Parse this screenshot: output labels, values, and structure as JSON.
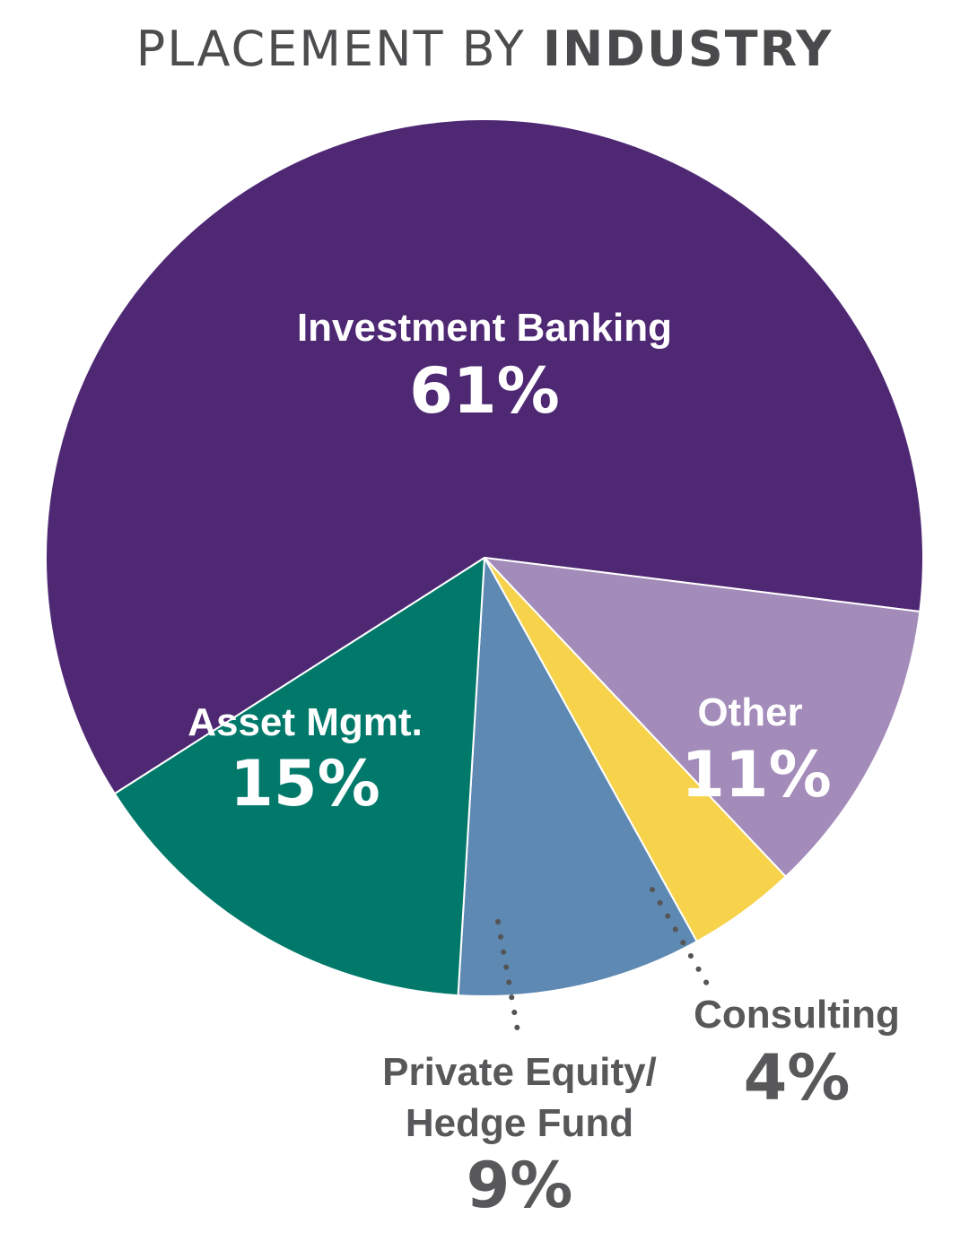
{
  "title": {
    "light": "PLACEMENT BY",
    "bold": "INDUSTRY"
  },
  "chart_data": {
    "type": "pie",
    "title": "PLACEMENT BY INDUSTRY",
    "unit": "%",
    "slices": [
      {
        "id": "investment-banking",
        "label_lines": [
          "Investment Banking"
        ],
        "value": 61,
        "display": "61%",
        "color": "#4f2874",
        "label_color": "#ffffff",
        "label_position": "inside"
      },
      {
        "id": "other",
        "label_lines": [
          "Other"
        ],
        "value": 11,
        "display": "11%",
        "color": "#a38bba",
        "label_color": "#ffffff",
        "label_position": "inside"
      },
      {
        "id": "consulting",
        "label_lines": [
          "Consulting"
        ],
        "value": 4,
        "display": "4%",
        "color": "#f7d34b",
        "label_color": "#58585a",
        "label_position": "outside"
      },
      {
        "id": "private-equity-hedge-fund",
        "label_lines": [
          "Private Equity/",
          "Hedge Fund"
        ],
        "value": 9,
        "display": "9%",
        "color": "#5e89b3",
        "label_color": "#58585a",
        "label_position": "outside"
      },
      {
        "id": "asset-mgmt",
        "label_lines": [
          "Asset Mgmt."
        ],
        "value": 15,
        "display": "15%",
        "color": "#00796b",
        "label_color": "#ffffff",
        "label_position": "inside"
      }
    ],
    "legend": "none",
    "leader_line_color": "#555555"
  }
}
